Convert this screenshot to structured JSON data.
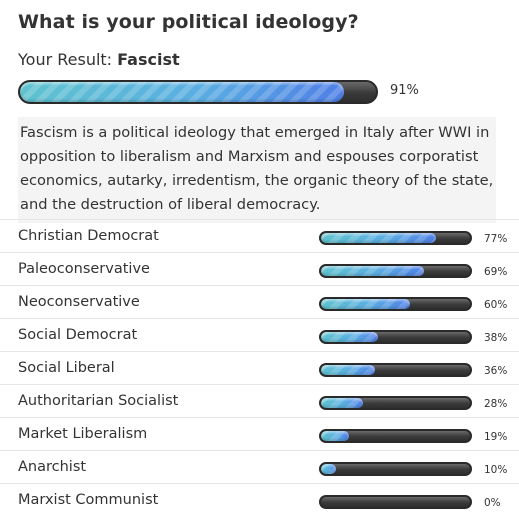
{
  "title": "What is your political ideology?",
  "result": {
    "prefix": "Your Result:",
    "ideology": "Fascist",
    "percent": 91,
    "percent_label": "91%"
  },
  "description": "Fascism is a political ideology that emerged in Italy after WWI in opposition to liberalism and Marxism and espouses corporatist economics, autarky, irredentism, the organic theory of the state, and the destruction of liberal democracy.",
  "others": [
    {
      "name": "Christian Democrat",
      "percent": 77,
      "percent_label": "77%"
    },
    {
      "name": "Paleoconservative",
      "percent": 69,
      "percent_label": "69%"
    },
    {
      "name": "Neoconservative",
      "percent": 60,
      "percent_label": "60%"
    },
    {
      "name": "Social Democrat",
      "percent": 38,
      "percent_label": "38%"
    },
    {
      "name": "Social Liberal",
      "percent": 36,
      "percent_label": "36%"
    },
    {
      "name": "Authoritarian Socialist",
      "percent": 28,
      "percent_label": "28%"
    },
    {
      "name": "Market Liberalism",
      "percent": 19,
      "percent_label": "19%"
    },
    {
      "name": "Anarchist",
      "percent": 10,
      "percent_label": "10%"
    },
    {
      "name": "Marxist Communist",
      "percent": 0,
      "percent_label": "0%"
    }
  ],
  "colors": {
    "fill_start": "#5fc3cf",
    "fill_end": "#4f7fe6",
    "track": "#3a3a3a"
  }
}
